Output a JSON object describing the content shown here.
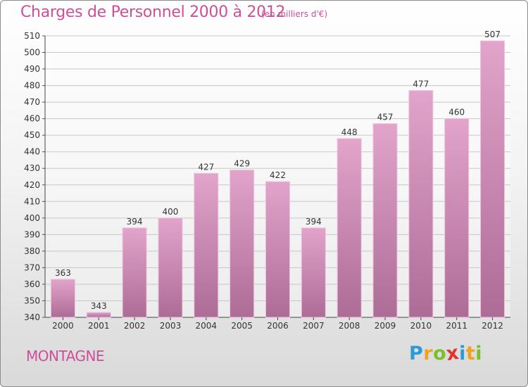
{
  "title": "Charges de Personnel 2000 à 2012",
  "subtitle": "(en milliers d'€)",
  "commune": "MONTAGNE",
  "logo": {
    "text": "Proxiti",
    "letters": [
      {
        "ch": "P",
        "color": "#2b9ad6"
      },
      {
        "ch": "r",
        "color": "#f0a21c"
      },
      {
        "ch": "o",
        "color": "#7bbf2a"
      },
      {
        "ch": "x",
        "color": "#e4322b"
      },
      {
        "ch": "i",
        "color": "#2b9ad6"
      },
      {
        "ch": "t",
        "color": "#f0a21c"
      },
      {
        "ch": "i",
        "color": "#7bbf2a"
      }
    ]
  },
  "colors": {
    "bar_top": "#e2a4cb",
    "bar_bottom": "#ad6c96",
    "accent": "#cc4f9a",
    "grid": "#c7c7c7"
  },
  "chart_data": {
    "type": "bar",
    "categories": [
      "2000",
      "2001",
      "2002",
      "2003",
      "2004",
      "2005",
      "2006",
      "2007",
      "2008",
      "2009",
      "2010",
      "2011",
      "2012"
    ],
    "values": [
      363,
      343,
      394,
      400,
      427,
      429,
      422,
      394,
      448,
      457,
      477,
      460,
      507
    ],
    "title": "Charges de Personnel 2000 à 2012",
    "ylim": [
      340,
      510
    ],
    "yticks": [
      340,
      350,
      360,
      370,
      380,
      390,
      400,
      410,
      420,
      430,
      440,
      450,
      460,
      470,
      480,
      490,
      500,
      510
    ],
    "grid": true
  }
}
